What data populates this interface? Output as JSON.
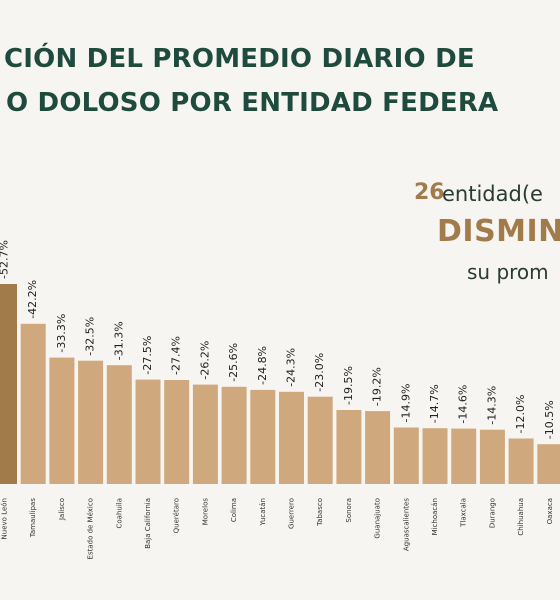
{
  "title_line1": "CIÓN DEL PROMEDIO DIARIO DE",
  "title_line2": "O DOLOSO POR ENTIDAD FEDERA",
  "callout": {
    "number": "26",
    "text": "entidad(e",
    "verb": "DISMIN",
    "sub": "su prom"
  },
  "colors": {
    "first_bar": "#a27b4b",
    "bars": "#cfa97d",
    "title": "#1f4a3e",
    "accent": "#a27b4b"
  },
  "chart_data": {
    "type": "bar",
    "title": "",
    "xlabel": "",
    "ylabel": "",
    "ylim": [
      -60,
      0
    ],
    "categories": [
      "Nuevo León",
      "Tamaulipas",
      "Jalisco",
      "Estado de México",
      "Coahuila",
      "Baja California",
      "Querétaro",
      "Morelos",
      "Colima",
      "Yucatán",
      "Guerrero",
      "Tabasco",
      "Sonora",
      "Guanajuato",
      "Aguascalientes",
      "Michoacán",
      "Tlaxcala",
      "Durango",
      "Chihuahua",
      "Oaxaca"
    ],
    "values": [
      -52.7,
      -42.2,
      -33.3,
      -32.5,
      -31.3,
      -27.5,
      -27.4,
      -26.2,
      -25.6,
      -24.8,
      -24.3,
      -23.0,
      -19.5,
      -19.2,
      -14.9,
      -14.7,
      -14.6,
      -14.3,
      -12.0,
      -10.5
    ],
    "labels": [
      "-52.7%",
      "-42.2%",
      "-33.3%",
      "-32.5%",
      "-31.3%",
      "-27.5%",
      "-27.4%",
      "-26.2%",
      "-25.6%",
      "-24.8%",
      "-24.3%",
      "-23.0%",
      "-19.5%",
      "-19.2%",
      "-14.9%",
      "-14.7%",
      "-14.6%",
      "-14.3%",
      "-12.0%",
      "-10.5%"
    ]
  }
}
